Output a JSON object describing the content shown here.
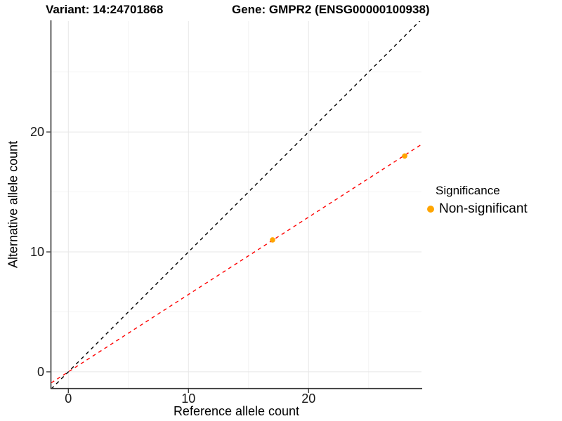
{
  "chart_data": {
    "type": "scatter",
    "titles": {
      "left": "Variant: 14:24701868",
      "right": "Gene: GMPR2 (ENSG00000100938)"
    },
    "xlabel": "Reference allele count",
    "ylabel": "Alternative allele count",
    "xlim": [
      -1.42,
      29.4
    ],
    "ylim": [
      -1.35,
      29.25
    ],
    "x_ticks": [
      0,
      10,
      20
    ],
    "y_ticks": [
      0,
      10,
      20
    ],
    "x_minor_ticks": [
      5,
      15,
      25
    ],
    "y_minor_ticks": [
      5,
      15,
      25
    ],
    "grid": true,
    "points": [
      {
        "x": 17,
        "y": 11,
        "series": "Non-significant"
      },
      {
        "x": 28,
        "y": 18,
        "series": "Non-significant"
      }
    ],
    "lines": [
      {
        "name": "identity-line",
        "slope": 1,
        "intercept": 0,
        "color": "#000000",
        "dash": "dashed"
      },
      {
        "name": "fit-line",
        "slope": 0.645,
        "intercept": 0,
        "color": "#FF0000",
        "dash": "dashed"
      }
    ],
    "legend": {
      "title": "Significance",
      "position": "right",
      "items": [
        {
          "label": "Non-significant",
          "color": "#FFA500"
        }
      ]
    },
    "colors": {
      "point": "#FFA500",
      "grid_major": "#e7e7e7",
      "grid_minor": "#f3f3f3",
      "axis": "#333333",
      "tick_text": "#1a1a1a"
    }
  }
}
